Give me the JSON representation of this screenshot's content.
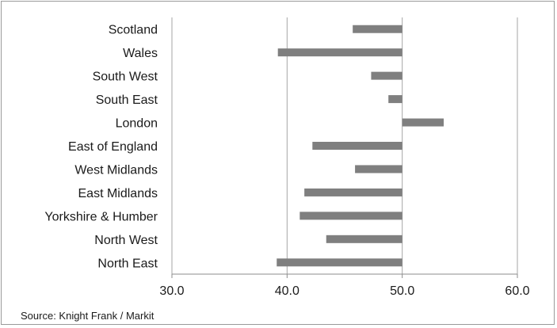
{
  "chart_data": {
    "type": "bar",
    "orientation": "horizontal",
    "categories": [
      "Scotland",
      "Wales",
      "South West",
      "South East",
      "London",
      "East of England",
      "West Midlands",
      "East Midlands",
      "Yorkshire & Humber",
      "North West",
      "North East"
    ],
    "values": [
      45.7,
      39.2,
      47.3,
      48.8,
      53.6,
      42.2,
      45.9,
      41.5,
      41.1,
      43.4,
      39.1
    ],
    "baseline": 50,
    "xlim": [
      30,
      60
    ],
    "xticks": [
      "30.0",
      "40.0",
      "50.0",
      "60.0"
    ],
    "xtick_values": [
      30,
      40,
      50,
      60
    ],
    "grid": true,
    "legend": "none",
    "bar_color": "#7f7f7f",
    "source": "Source: Knight Frank / Markit"
  }
}
